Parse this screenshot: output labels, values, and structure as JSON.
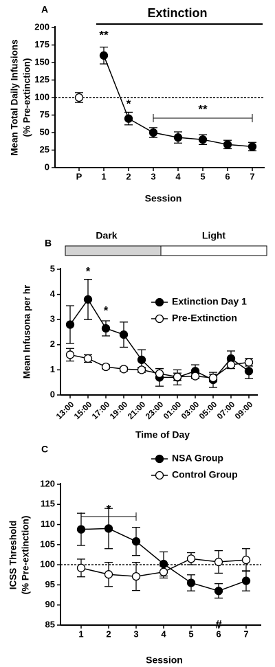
{
  "chart_data": [
    {
      "type": "line",
      "panel": "A",
      "period_label": "Extinction",
      "x_label": "Session",
      "y_label": [
        "Mean Total Daily Infusions",
        "(% Pre-extinction)"
      ],
      "categories": [
        "P",
        "1",
        "2",
        "3",
        "4",
        "5",
        "6",
        "7"
      ],
      "series": [
        {
          "color": "#000000",
          "fill": "#ffffff",
          "line": false,
          "values": [
            100,
            null,
            null,
            null,
            null,
            null,
            null,
            null
          ],
          "errors": [
            7,
            null,
            null,
            null,
            null,
            null,
            null,
            null
          ]
        },
        {
          "color": "#000000",
          "fill": "#000000",
          "line": true,
          "values": [
            null,
            160,
            70,
            50,
            43,
            40,
            33,
            30
          ],
          "errors": [
            null,
            12,
            9,
            7,
            8,
            7,
            6,
            6
          ]
        }
      ],
      "ylim": [
        0,
        200
      ],
      "yticks": [
        0,
        25,
        50,
        75,
        100,
        125,
        150,
        175,
        200
      ],
      "reference_line": 100,
      "annotations": [
        "**",
        "*",
        "**"
      ]
    },
    {
      "type": "line",
      "panel": "B",
      "period_labels": [
        "Dark",
        "Light"
      ],
      "x_label": "Time of Day",
      "y_label": [
        "Mean Infusona per hr"
      ],
      "x_tick_rotation": 45,
      "categories": [
        "13:00",
        "15:00",
        "17:00",
        "19:00",
        "21:00",
        "23:00",
        "01:00",
        "03:00",
        "05:00",
        "07:00",
        "09:00"
      ],
      "series": [
        {
          "name": "Extinction Day 1",
          "color": "#000000",
          "fill": "#000000",
          "line": true,
          "values": [
            2.8,
            3.8,
            2.65,
            2.4,
            1.4,
            0.7,
            0.7,
            0.95,
            0.6,
            1.45,
            0.95
          ],
          "errors": [
            0.75,
            0.8,
            0.3,
            0.5,
            0.4,
            0.35,
            0.3,
            0.25,
            0.3,
            0.3,
            0.3
          ]
        },
        {
          "name": "Pre-Extinction",
          "color": "#000000",
          "fill": "#ffffff",
          "line": true,
          "values": [
            1.6,
            1.45,
            1.12,
            1.03,
            1.0,
            0.85,
            0.72,
            0.75,
            0.68,
            1.2,
            1.3
          ],
          "errors": [
            0.25,
            0.15,
            0.08,
            0.08,
            0.1,
            0.2,
            0.15,
            0.1,
            0.15,
            0.15,
            0.15
          ]
        }
      ],
      "ylim": [
        0,
        5
      ],
      "yticks": [
        0,
        1,
        2,
        3,
        4,
        5
      ],
      "annotations": [
        "*",
        "*"
      ]
    },
    {
      "type": "line",
      "panel": "C",
      "x_label": "Session",
      "y_label": [
        "ICSS Threshold",
        "(% Pre-extinction)"
      ],
      "categories": [
        "1",
        "2",
        "3",
        "4",
        "5",
        "6",
        "7"
      ],
      "series": [
        {
          "name": "NSA Group",
          "color": "#000000",
          "fill": "#000000",
          "line": true,
          "values": [
            108.8,
            109,
            105.8,
            100.2,
            95.5,
            93.5,
            96
          ],
          "errors": [
            4,
            5,
            3.5,
            3,
            2,
            1.8,
            2.5
          ]
        },
        {
          "name": "Control Group",
          "color": "#000000",
          "fill": "#ffffff",
          "line": true,
          "values": [
            99.2,
            97.6,
            97.1,
            98.2,
            101.5,
            100.7,
            101.2
          ],
          "errors": [
            2.2,
            3,
            3.5,
            1.5,
            1.5,
            2.8,
            2.8
          ]
        }
      ],
      "ylim": [
        85,
        120
      ],
      "yticks": [
        85,
        90,
        95,
        100,
        105,
        110,
        115,
        120
      ],
      "reference_line": 100,
      "annotations": [
        "*",
        "#"
      ]
    }
  ]
}
